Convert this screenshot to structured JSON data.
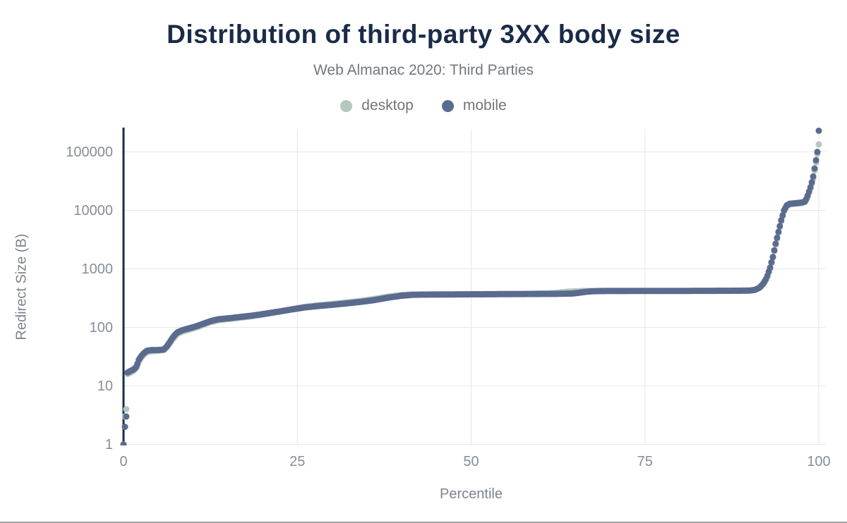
{
  "header": {
    "title": "Distribution of third-party 3XX body size",
    "subtitle": "Web Almanac 2020: Third Parties"
  },
  "legend": {
    "items": [
      {
        "label": "desktop",
        "color": "#b4c9bc"
      },
      {
        "label": "mobile",
        "color": "#5a6b8e"
      }
    ]
  },
  "colors": {
    "title": "#1a2b49",
    "subtitle": "#71787f",
    "tick_label": "#878e96",
    "axis_title": "#7d848c",
    "legend_label": "#757575",
    "axis_line": "#1b2d4f",
    "gridline": "#e7e7e7",
    "bottom_border": "#a2a4a6",
    "background": "#ffffff"
  },
  "chart_data": {
    "type": "scatter",
    "title": "Distribution of third-party 3XX body size",
    "subtitle": "Web Almanac 2020: Third Parties",
    "xlabel": "Percentile",
    "ylabel": "Redirect Size (B)",
    "x_ticks": [
      0,
      25,
      50,
      75,
      100
    ],
    "y_ticks": [
      1,
      10,
      100,
      1000,
      10000,
      100000
    ],
    "y_scale": "log",
    "xlim": [
      0,
      100
    ],
    "ylim": [
      1,
      250000
    ],
    "grid": true,
    "legend_position": "top",
    "marker_radius": 4.5,
    "sample_step_percentile": 0.2,
    "series": [
      {
        "name": "desktop",
        "color": "#b4c9bc",
        "points": [
          [
            0,
            1
          ],
          [
            0.2,
            3
          ],
          [
            0.4,
            4
          ],
          [
            0.6,
            16
          ],
          [
            1,
            17
          ],
          [
            1.4,
            18
          ],
          [
            1.8,
            20
          ],
          [
            2,
            22
          ],
          [
            2.2,
            26
          ],
          [
            2.6,
            31
          ],
          [
            3,
            35
          ],
          [
            3.4,
            38
          ],
          [
            4,
            39
          ],
          [
            5,
            40
          ],
          [
            5.8,
            41
          ],
          [
            6.2,
            45
          ],
          [
            6.6,
            52
          ],
          [
            7,
            61
          ],
          [
            7.4,
            70
          ],
          [
            7.8,
            78
          ],
          [
            8.5,
            85
          ],
          [
            9.5,
            92
          ],
          [
            10.5,
            100
          ],
          [
            11.5,
            111
          ],
          [
            12.5,
            123
          ],
          [
            13.5,
            132
          ],
          [
            14.5,
            137
          ],
          [
            15.5,
            141
          ],
          [
            17,
            148
          ],
          [
            18.5,
            155
          ],
          [
            20,
            166
          ],
          [
            22,
            182
          ],
          [
            24,
            202
          ],
          [
            26,
            224
          ],
          [
            28,
            239
          ],
          [
            30,
            251
          ],
          [
            32,
            266
          ],
          [
            34,
            283
          ],
          [
            36,
            305
          ],
          [
            38,
            335
          ],
          [
            40,
            358
          ],
          [
            41.5,
            366
          ],
          [
            43,
            363
          ],
          [
            46,
            364
          ],
          [
            50,
            367
          ],
          [
            54,
            372
          ],
          [
            58,
            376
          ],
          [
            61,
            381
          ],
          [
            62,
            386
          ],
          [
            63,
            397
          ],
          [
            64,
            408
          ],
          [
            65,
            414
          ],
          [
            66,
            417
          ],
          [
            68,
            419
          ],
          [
            72,
            420
          ],
          [
            76,
            421
          ],
          [
            80,
            421
          ],
          [
            84,
            422
          ],
          [
            88,
            423
          ],
          [
            90,
            425
          ],
          [
            90.8,
            436
          ],
          [
            91.5,
            474
          ],
          [
            92,
            548
          ],
          [
            92.5,
            680
          ],
          [
            93,
            1020
          ],
          [
            93.4,
            1550
          ],
          [
            93.8,
            2600
          ],
          [
            94.2,
            4100
          ],
          [
            94.6,
            6500
          ],
          [
            95,
            9600
          ],
          [
            95.4,
            11800
          ],
          [
            95.8,
            12700
          ],
          [
            96.4,
            12900
          ],
          [
            97,
            13100
          ],
          [
            97.6,
            13400
          ],
          [
            98,
            13900
          ],
          [
            98.3,
            15800
          ],
          [
            98.6,
            20000
          ],
          [
            98.9,
            25500
          ],
          [
            99.2,
            35000
          ],
          [
            99.4,
            48000
          ],
          [
            99.6,
            66000
          ],
          [
            99.8,
            92000
          ],
          [
            100,
            135000
          ]
        ]
      },
      {
        "name": "mobile",
        "color": "#5a6b8e",
        "points": [
          [
            0,
            1
          ],
          [
            0.2,
            2
          ],
          [
            0.4,
            3
          ],
          [
            0.6,
            17
          ],
          [
            1,
            18
          ],
          [
            1.4,
            19
          ],
          [
            1.8,
            21
          ],
          [
            2,
            24
          ],
          [
            2.2,
            28
          ],
          [
            2.6,
            33
          ],
          [
            3,
            37
          ],
          [
            3.4,
            40
          ],
          [
            4,
            41
          ],
          [
            5,
            41
          ],
          [
            5.8,
            42
          ],
          [
            6.2,
            47
          ],
          [
            6.6,
            55
          ],
          [
            7,
            65
          ],
          [
            7.4,
            75
          ],
          [
            7.8,
            83
          ],
          [
            8.5,
            90
          ],
          [
            9.5,
            97
          ],
          [
            10.5,
            105
          ],
          [
            11.5,
            116
          ],
          [
            12.5,
            128
          ],
          [
            13.5,
            137
          ],
          [
            14.5,
            141
          ],
          [
            15.5,
            145
          ],
          [
            17,
            152
          ],
          [
            18.5,
            159
          ],
          [
            20,
            169
          ],
          [
            22,
            184
          ],
          [
            24,
            201
          ],
          [
            26,
            219
          ],
          [
            28,
            232
          ],
          [
            30,
            243
          ],
          [
            32,
            257
          ],
          [
            34,
            272
          ],
          [
            36,
            292
          ],
          [
            38,
            322
          ],
          [
            40,
            348
          ],
          [
            41.5,
            360
          ],
          [
            43,
            364
          ],
          [
            46,
            366
          ],
          [
            50,
            368
          ],
          [
            54,
            370
          ],
          [
            58,
            372
          ],
          [
            62,
            374
          ],
          [
            64.5,
            379
          ],
          [
            65.5,
            391
          ],
          [
            66.5,
            406
          ],
          [
            67.5,
            415
          ],
          [
            69,
            419
          ],
          [
            72,
            420
          ],
          [
            76,
            421
          ],
          [
            80,
            421
          ],
          [
            84,
            422
          ],
          [
            88,
            424
          ],
          [
            90,
            426
          ],
          [
            90.8,
            438
          ],
          [
            91.5,
            480
          ],
          [
            92,
            560
          ],
          [
            92.5,
            700
          ],
          [
            93,
            1050
          ],
          [
            93.4,
            1600
          ],
          [
            93.8,
            2700
          ],
          [
            94.2,
            4300
          ],
          [
            94.6,
            6800
          ],
          [
            95,
            10000
          ],
          [
            95.4,
            12200
          ],
          [
            95.8,
            13000
          ],
          [
            96.4,
            13200
          ],
          [
            97,
            13400
          ],
          [
            97.6,
            13700
          ],
          [
            98,
            14200
          ],
          [
            98.3,
            16500
          ],
          [
            98.6,
            21000
          ],
          [
            98.9,
            27000
          ],
          [
            99.2,
            38000
          ],
          [
            99.4,
            52000
          ],
          [
            99.6,
            72000
          ],
          [
            99.8,
            100000
          ],
          [
            100,
            230000
          ]
        ]
      }
    ]
  }
}
